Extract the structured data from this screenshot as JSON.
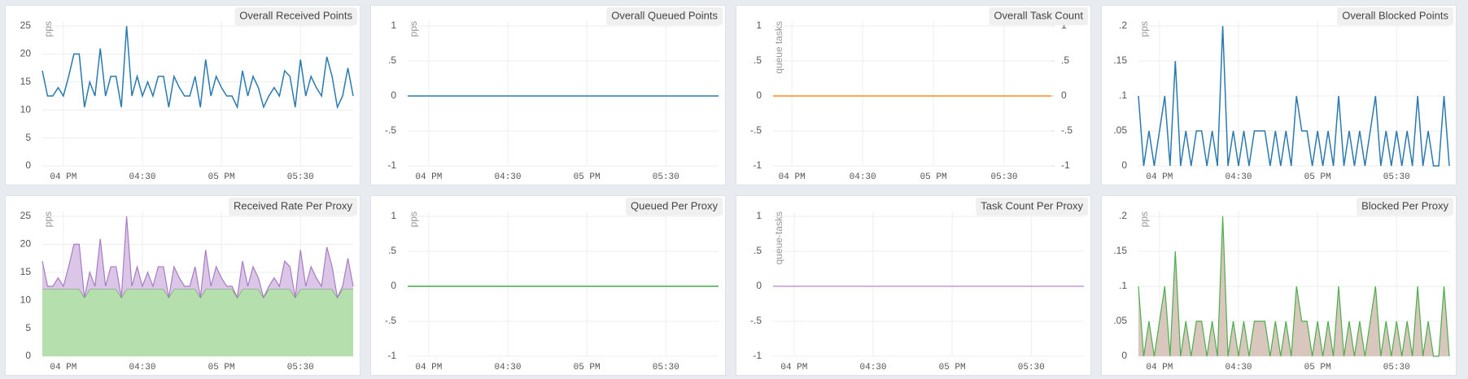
{
  "chart_data": [
    {
      "type": "line",
      "title": "Overall Received Points",
      "y_label": "pps",
      "grid": true,
      "categories": [
        null,
        null,
        null,
        null,
        "04 PM",
        null,
        null,
        null,
        null,
        null,
        null,
        null,
        null,
        null,
        null,
        null,
        null,
        null,
        null,
        "04:30",
        null,
        null,
        null,
        null,
        null,
        null,
        null,
        null,
        null,
        null,
        null,
        null,
        null,
        null,
        "05 PM",
        null,
        null,
        null,
        null,
        null,
        null,
        null,
        null,
        null,
        null,
        null,
        null,
        null,
        null,
        "05:30",
        null,
        null,
        null,
        null,
        null,
        null,
        null,
        null,
        null,
        null
      ],
      "ylim": [
        0,
        25
      ],
      "yticks": [
        0,
        5,
        10,
        15,
        20,
        25
      ],
      "series": [
        {
          "color": "#2a7ab0",
          "values": [
            17,
            12.5,
            12.5,
            14,
            12.5,
            16,
            20,
            20,
            10.5,
            15,
            12.5,
            21,
            12.5,
            16,
            16,
            10.5,
            25,
            12.5,
            16,
            12.5,
            15,
            12.5,
            16,
            16,
            10.5,
            16,
            14,
            12.5,
            12.5,
            16,
            10.5,
            19,
            12.5,
            16,
            14,
            12.5,
            12.5,
            10.5,
            17,
            12.5,
            16,
            14,
            10.5,
            12.5,
            14,
            12.5,
            17,
            16,
            10.5,
            19,
            12.5,
            16,
            14,
            12.5,
            19.5,
            16,
            10.5,
            12.5,
            17.5,
            12.5
          ]
        }
      ]
    },
    {
      "type": "line",
      "title": "Overall Queued Points",
      "y_label": "pps",
      "grid": true,
      "categories": [
        null,
        null,
        null,
        null,
        "04 PM",
        null,
        null,
        null,
        null,
        null,
        null,
        null,
        null,
        null,
        null,
        null,
        null,
        null,
        null,
        "04:30",
        null,
        null,
        null,
        null,
        null,
        null,
        null,
        null,
        null,
        null,
        null,
        null,
        null,
        null,
        "05 PM",
        null,
        null,
        null,
        null,
        null,
        null,
        null,
        null,
        null,
        null,
        null,
        null,
        null,
        null,
        "05:30",
        null,
        null,
        null,
        null,
        null,
        null,
        null,
        null,
        null,
        null
      ],
      "ylim": [
        -1,
        1
      ],
      "yticks": [
        -1,
        {
          "value": -0.5,
          "label": "-.5"
        },
        0,
        {
          "value": 0.5,
          "label": ".5"
        },
        1
      ],
      "series": [
        {
          "color": "#2a7ab0",
          "values": [
            0,
            0,
            0,
            0,
            0,
            0,
            0,
            0,
            0,
            0,
            0,
            0,
            0,
            0,
            0,
            0,
            0,
            0,
            0,
            0,
            0,
            0,
            0,
            0,
            0,
            0,
            0,
            0,
            0,
            0,
            0,
            0,
            0,
            0,
            0,
            0,
            0,
            0,
            0,
            0,
            0,
            0,
            0,
            0,
            0,
            0,
            0,
            0,
            0,
            0,
            0,
            0,
            0,
            0,
            0,
            0,
            0,
            0,
            0,
            0
          ]
        }
      ]
    },
    {
      "type": "line",
      "title": "Overall Task Count",
      "y_label": "queue tasks",
      "grid": true,
      "categories": [
        null,
        null,
        null,
        null,
        "04 PM",
        null,
        null,
        null,
        null,
        null,
        null,
        null,
        null,
        null,
        null,
        null,
        null,
        null,
        null,
        "04:30",
        null,
        null,
        null,
        null,
        null,
        null,
        null,
        null,
        null,
        null,
        null,
        null,
        null,
        null,
        "05 PM",
        null,
        null,
        null,
        null,
        null,
        null,
        null,
        null,
        null,
        null,
        null,
        null,
        null,
        null,
        "05:30",
        null,
        null,
        null,
        null,
        null,
        null,
        null,
        null,
        null,
        null
      ],
      "ylim": [
        -1,
        1
      ],
      "yticks": [
        -1,
        {
          "value": -0.5,
          "label": "-.5"
        },
        0,
        {
          "value": 0.5,
          "label": ".5"
        },
        1
      ],
      "y2lim": [
        -1,
        1
      ],
      "y2ticks": [
        -1,
        {
          "value": -0.5,
          "label": "-.5"
        },
        0,
        {
          "value": 0.5,
          "label": ".5"
        },
        1
      ],
      "series": [
        {
          "color": "#ff8c1a",
          "values": [
            0,
            0,
            0,
            0,
            0,
            0,
            0,
            0,
            0,
            0,
            0,
            0,
            0,
            0,
            0,
            0,
            0,
            0,
            0,
            0,
            0,
            0,
            0,
            0,
            0,
            0,
            0,
            0,
            0,
            0,
            0,
            0,
            0,
            0,
            0,
            0,
            0,
            0,
            0,
            0,
            0,
            0,
            0,
            0,
            0,
            0,
            0,
            0,
            0,
            0,
            0,
            0,
            0,
            0,
            0,
            0,
            0,
            0,
            0,
            0
          ]
        }
      ]
    },
    {
      "type": "line",
      "title": "Overall Blocked Points",
      "y_label": "pps",
      "grid": true,
      "categories": [
        null,
        null,
        null,
        null,
        "04 PM",
        null,
        null,
        null,
        null,
        null,
        null,
        null,
        null,
        null,
        null,
        null,
        null,
        null,
        null,
        "04:30",
        null,
        null,
        null,
        null,
        null,
        null,
        null,
        null,
        null,
        null,
        null,
        null,
        null,
        null,
        "05 PM",
        null,
        null,
        null,
        null,
        null,
        null,
        null,
        null,
        null,
        null,
        null,
        null,
        null,
        null,
        "05:30",
        null,
        null,
        null,
        null,
        null,
        null,
        null,
        null,
        null,
        null
      ],
      "ylim": [
        0,
        0.2
      ],
      "yticks": [
        0,
        {
          "value": 0.05,
          "label": ".05"
        },
        {
          "value": 0.1,
          "label": ".1"
        },
        {
          "value": 0.15,
          "label": ".15"
        },
        {
          "value": 0.2,
          "label": ".2"
        }
      ],
      "series": [
        {
          "color": "#2a7ab0",
          "values": [
            0.1,
            0,
            0.05,
            0,
            0.05,
            0.1,
            0,
            0.15,
            0,
            0.05,
            0,
            0.05,
            0.05,
            0,
            0.05,
            0,
            0.2,
            0,
            0.05,
            0,
            0.05,
            0,
            0.05,
            0.05,
            0.05,
            0,
            0.05,
            0,
            0.05,
            0,
            0.1,
            0.05,
            0.05,
            0,
            0.05,
            0,
            0.05,
            0,
            0.1,
            0,
            0.05,
            0,
            0.05,
            0,
            0.05,
            0.1,
            0,
            0.05,
            0,
            0.05,
            0,
            0.05,
            0,
            0.1,
            0,
            0.05,
            0,
            0,
            0.1,
            0
          ]
        }
      ]
    },
    {
      "type": "area",
      "title": "Received Rate Per Proxy",
      "y_label": "pps",
      "grid": true,
      "categories": [
        null,
        null,
        null,
        null,
        "04 PM",
        null,
        null,
        null,
        null,
        null,
        null,
        null,
        null,
        null,
        null,
        null,
        null,
        null,
        null,
        "04:30",
        null,
        null,
        null,
        null,
        null,
        null,
        null,
        null,
        null,
        null,
        null,
        null,
        null,
        null,
        "05 PM",
        null,
        null,
        null,
        null,
        null,
        null,
        null,
        null,
        null,
        null,
        null,
        null,
        null,
        null,
        "05:30",
        null,
        null,
        null,
        null,
        null,
        null,
        null,
        null,
        null,
        null
      ],
      "ylim": [
        0,
        25
      ],
      "yticks": [
        0,
        5,
        10,
        15,
        20,
        25
      ],
      "series": [
        {
          "color": "#5d9e4f",
          "fill": "#b5e0ad",
          "values": [
            12,
            12,
            12,
            12,
            12,
            12,
            12,
            12,
            10.5,
            12,
            12,
            12,
            12,
            12,
            12,
            10.5,
            12,
            12,
            12,
            12,
            12,
            12,
            12,
            12,
            10.5,
            12,
            12,
            12,
            12,
            12,
            10.5,
            12,
            12,
            12,
            12,
            12,
            12,
            10.5,
            12,
            12,
            12,
            12,
            10.5,
            12,
            12,
            12,
            12,
            12,
            10.5,
            12,
            12,
            12,
            12,
            12,
            12,
            12,
            10.5,
            12,
            12,
            12
          ]
        },
        {
          "color": "#a77dc2",
          "fill": "#dbc6e8",
          "values": [
            5,
            0.5,
            0.5,
            2,
            0.5,
            4,
            8,
            8,
            0,
            3,
            0.5,
            9,
            0.5,
            4,
            4,
            0,
            13,
            0.5,
            4,
            0.5,
            3,
            0.5,
            4,
            4,
            0,
            4,
            2,
            0.5,
            0.5,
            4,
            0,
            7,
            0.5,
            4,
            2,
            0.5,
            0.5,
            0,
            5,
            0.5,
            4,
            2,
            0,
            0.5,
            2,
            0.5,
            5,
            4,
            0,
            7,
            0.5,
            4,
            2,
            0.5,
            7.5,
            4,
            0,
            0.5,
            5.5,
            0.5
          ]
        }
      ]
    },
    {
      "type": "line",
      "title": "Queued Per Proxy",
      "y_label": "pps",
      "grid": true,
      "categories": [
        null,
        null,
        null,
        null,
        "04 PM",
        null,
        null,
        null,
        null,
        null,
        null,
        null,
        null,
        null,
        null,
        null,
        null,
        null,
        null,
        "04:30",
        null,
        null,
        null,
        null,
        null,
        null,
        null,
        null,
        null,
        null,
        null,
        null,
        null,
        null,
        "05 PM",
        null,
        null,
        null,
        null,
        null,
        null,
        null,
        null,
        null,
        null,
        null,
        null,
        null,
        null,
        "05:30",
        null,
        null,
        null,
        null,
        null,
        null,
        null,
        null,
        null,
        null
      ],
      "ylim": [
        -1,
        1
      ],
      "yticks": [
        -1,
        {
          "value": -0.5,
          "label": "-.5"
        },
        0,
        {
          "value": 0.5,
          "label": ".5"
        },
        1
      ],
      "series": [
        {
          "color": "#4ca84c",
          "values": [
            0,
            0,
            0,
            0,
            0,
            0,
            0,
            0,
            0,
            0,
            0,
            0,
            0,
            0,
            0,
            0,
            0,
            0,
            0,
            0,
            0,
            0,
            0,
            0,
            0,
            0,
            0,
            0,
            0,
            0,
            0,
            0,
            0,
            0,
            0,
            0,
            0,
            0,
            0,
            0,
            0,
            0,
            0,
            0,
            0,
            0,
            0,
            0,
            0,
            0,
            0,
            0,
            0,
            0,
            0,
            0,
            0,
            0,
            0,
            0
          ]
        }
      ]
    },
    {
      "type": "line",
      "title": "Task Count Per Proxy",
      "y_label": "queue-tasks",
      "grid": true,
      "categories": [
        null,
        null,
        null,
        null,
        "04 PM",
        null,
        null,
        null,
        null,
        null,
        null,
        null,
        null,
        null,
        null,
        null,
        null,
        null,
        null,
        "04:30",
        null,
        null,
        null,
        null,
        null,
        null,
        null,
        null,
        null,
        null,
        null,
        null,
        null,
        null,
        "05 PM",
        null,
        null,
        null,
        null,
        null,
        null,
        null,
        null,
        null,
        null,
        null,
        null,
        null,
        null,
        "05:30",
        null,
        null,
        null,
        null,
        null,
        null,
        null,
        null,
        null,
        null
      ],
      "ylim": [
        -1,
        1
      ],
      "yticks": [
        -1,
        {
          "value": -0.5,
          "label": "-.5"
        },
        0,
        {
          "value": 0.5,
          "label": ".5"
        },
        1
      ],
      "series": [
        {
          "color": "#c39bd3",
          "values": [
            0,
            0,
            0,
            0,
            0,
            0,
            0,
            0,
            0,
            0,
            0,
            0,
            0,
            0,
            0,
            0,
            0,
            0,
            0,
            0,
            0,
            0,
            0,
            0,
            0,
            0,
            0,
            0,
            0,
            0,
            0,
            0,
            0,
            0,
            0,
            0,
            0,
            0,
            0,
            0,
            0,
            0,
            0,
            0,
            0,
            0,
            0,
            0,
            0,
            0,
            0,
            0,
            0,
            0,
            0,
            0,
            0,
            0,
            0,
            0
          ]
        }
      ]
    },
    {
      "type": "area",
      "title": "Blocked Per Proxy",
      "y_label": "pps",
      "grid": true,
      "categories": [
        null,
        null,
        null,
        null,
        "04 PM",
        null,
        null,
        null,
        null,
        null,
        null,
        null,
        null,
        null,
        null,
        null,
        null,
        null,
        null,
        "04:30",
        null,
        null,
        null,
        null,
        null,
        null,
        null,
        null,
        null,
        null,
        null,
        null,
        null,
        null,
        "05 PM",
        null,
        null,
        null,
        null,
        null,
        null,
        null,
        null,
        null,
        null,
        null,
        null,
        null,
        null,
        "05:30",
        null,
        null,
        null,
        null,
        null,
        null,
        null,
        null,
        null,
        null
      ],
      "ylim": [
        0,
        0.2
      ],
      "yticks": [
        0,
        {
          "value": 0.05,
          "label": ".05"
        },
        {
          "value": 0.1,
          "label": ".1"
        },
        {
          "value": 0.15,
          "label": ".15"
        },
        {
          "value": 0.2,
          "label": ".2"
        }
      ],
      "series": [
        {
          "color": "#4cae4c",
          "fill": "#d9c6bd",
          "values": [
            0.1,
            0,
            0.05,
            0,
            0.05,
            0.1,
            0,
            0.15,
            0,
            0.05,
            0,
            0.05,
            0.05,
            0,
            0.05,
            0,
            0.2,
            0,
            0.05,
            0,
            0.05,
            0,
            0.05,
            0.05,
            0.05,
            0,
            0.05,
            0,
            0.05,
            0,
            0.1,
            0.05,
            0.05,
            0,
            0.05,
            0,
            0.05,
            0,
            0.1,
            0,
            0.05,
            0,
            0.05,
            0,
            0.05,
            0.1,
            0,
            0.05,
            0,
            0.05,
            0,
            0.05,
            0,
            0.1,
            0,
            0.05,
            0,
            0,
            0.1,
            0
          ]
        }
      ]
    }
  ]
}
